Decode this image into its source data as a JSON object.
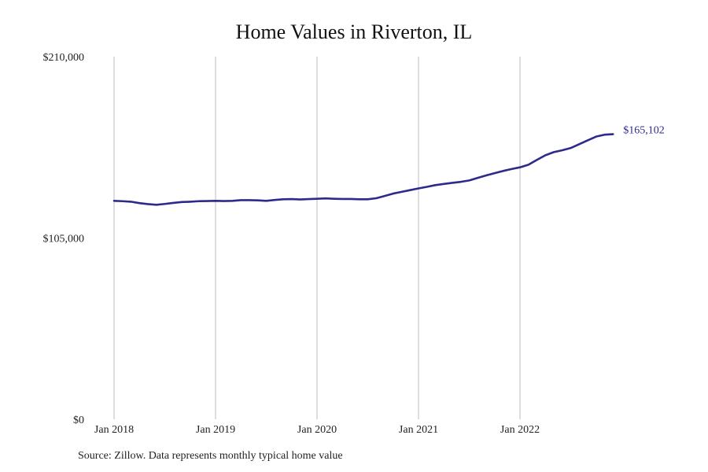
{
  "chart_data": {
    "type": "line",
    "title": "Home Values in Riverton, IL",
    "xlabel": "",
    "ylabel": "",
    "x_ticks": [
      "Jan 2018",
      "Jan 2019",
      "Jan 2020",
      "Jan 2021",
      "Jan 2022"
    ],
    "y_ticks": [
      "$210,000",
      "$105,000",
      "$0"
    ],
    "ylim": [
      0,
      210000
    ],
    "xlim": [
      "2018-01",
      "2022-12"
    ],
    "grid": "vertical",
    "series": [
      {
        "name": "",
        "color": "#2e2a8c",
        "end_label": "$165,102",
        "points": [
          [
            "2018-01",
            126500
          ],
          [
            "2018-02",
            126300
          ],
          [
            "2018-03",
            126000
          ],
          [
            "2018-04",
            125200
          ],
          [
            "2018-05",
            124600
          ],
          [
            "2018-06",
            124200
          ],
          [
            "2018-07",
            124700
          ],
          [
            "2018-08",
            125300
          ],
          [
            "2018-09",
            125800
          ],
          [
            "2018-10",
            126000
          ],
          [
            "2018-11",
            126300
          ],
          [
            "2018-12",
            126400
          ],
          [
            "2019-01",
            126500
          ],
          [
            "2019-02",
            126400
          ],
          [
            "2019-03",
            126500
          ],
          [
            "2019-04",
            126900
          ],
          [
            "2019-05",
            126900
          ],
          [
            "2019-06",
            126800
          ],
          [
            "2019-07",
            126500
          ],
          [
            "2019-08",
            127000
          ],
          [
            "2019-09",
            127400
          ],
          [
            "2019-10",
            127500
          ],
          [
            "2019-11",
            127300
          ],
          [
            "2019-12",
            127500
          ],
          [
            "2020-01",
            127700
          ],
          [
            "2020-02",
            127900
          ],
          [
            "2020-03",
            127700
          ],
          [
            "2020-04",
            127600
          ],
          [
            "2020-05",
            127600
          ],
          [
            "2020-06",
            127400
          ],
          [
            "2020-07",
            127400
          ],
          [
            "2020-08",
            128000
          ],
          [
            "2020-09",
            129300
          ],
          [
            "2020-10",
            130700
          ],
          [
            "2020-11",
            131700
          ],
          [
            "2020-12",
            132700
          ],
          [
            "2021-01",
            133700
          ],
          [
            "2021-02",
            134600
          ],
          [
            "2021-03",
            135600
          ],
          [
            "2021-04",
            136300
          ],
          [
            "2021-05",
            136900
          ],
          [
            "2021-06",
            137500
          ],
          [
            "2021-07",
            138300
          ],
          [
            "2021-08",
            139800
          ],
          [
            "2021-09",
            141200
          ],
          [
            "2021-10",
            142500
          ],
          [
            "2021-11",
            143800
          ],
          [
            "2021-12",
            144900
          ],
          [
            "2022-01",
            145900
          ],
          [
            "2022-02",
            147400
          ],
          [
            "2022-03",
            150200
          ],
          [
            "2022-04",
            152900
          ],
          [
            "2022-05",
            154700
          ],
          [
            "2022-06",
            155800
          ],
          [
            "2022-07",
            157100
          ],
          [
            "2022-08",
            159300
          ],
          [
            "2022-09",
            161500
          ],
          [
            "2022-10",
            163700
          ],
          [
            "2022-11",
            164800
          ],
          [
            "2022-12",
            165102
          ]
        ]
      }
    ]
  },
  "source": "Source: Zillow. Data represents monthly typical home value"
}
